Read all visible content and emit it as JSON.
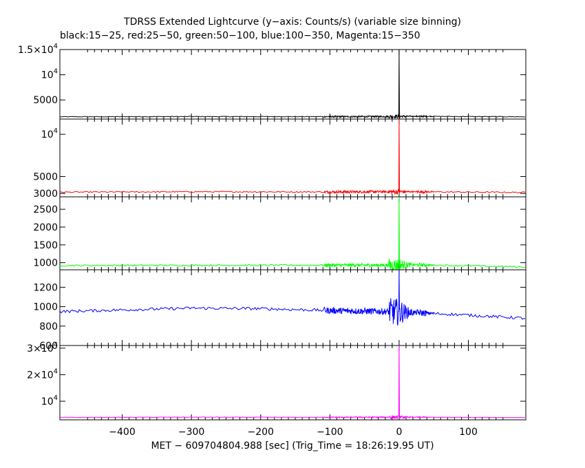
{
  "chart_data": {
    "type": "line",
    "title": "TDRSS Extended Lightcurve (y−axis: Counts/s) (variable size binning)",
    "subtitle": "black:15−25, red:25−50, green:50−100, blue:100−350, Magenta:15−350",
    "xlabel": "MET − 609704804.988 [sec] (Trig_Time = 18:26:19.95 UT)",
    "xlim": [
      -490,
      183
    ],
    "x_ticks": [
      -400,
      -300,
      -200,
      -100,
      0,
      100
    ],
    "x_tick_labels": [
      "−400",
      "−300",
      "−200",
      "−100",
      "0",
      "100"
    ],
    "panels": [
      {
        "name": "black:15−25",
        "color": "#000000",
        "ylim": [
          1200,
          15000
        ],
        "y_ticks": [
          5000,
          10000,
          15000
        ],
        "y_tick_labels": [
          {
            "base": "5000",
            "exp": ""
          },
          {
            "base": "10",
            "exp": "4"
          },
          {
            "base": "1.5×10",
            "exp": "4"
          }
        ],
        "baseline": [
          [
            -490,
            1650
          ],
          [
            -300,
            1700
          ],
          [
            -100,
            1680
          ],
          [
            -20,
            1700
          ],
          [
            20,
            1750
          ],
          [
            183,
            1650
          ]
        ],
        "noise": 70,
        "burst_noise": 350,
        "peak": 15000
      },
      {
        "name": "red:25−50",
        "color": "#ff0000",
        "ylim": [
          2600,
          11800
        ],
        "y_ticks": [
          3000,
          5000,
          10000
        ],
        "y_tick_labels": [
          {
            "base": "3000",
            "exp": ""
          },
          {
            "base": "5000",
            "exp": ""
          },
          {
            "base": "10",
            "exp": "4"
          }
        ],
        "baseline": [
          [
            -490,
            3150
          ],
          [
            -300,
            3200
          ],
          [
            -100,
            3180
          ],
          [
            -20,
            3200
          ],
          [
            20,
            3200
          ],
          [
            183,
            3120
          ]
        ],
        "noise": 70,
        "burst_noise": 300,
        "peak": 11800
      },
      {
        "name": "green:50−100",
        "color": "#00ff00",
        "ylim": [
          800,
          2850
        ],
        "y_ticks": [
          1000,
          1500,
          2000,
          2500
        ],
        "y_tick_labels": [
          {
            "base": "1000",
            "exp": ""
          },
          {
            "base": "1500",
            "exp": ""
          },
          {
            "base": "2000",
            "exp": ""
          },
          {
            "base": "2500",
            "exp": ""
          }
        ],
        "baseline": [
          [
            -490,
            920
          ],
          [
            -300,
            925
          ],
          [
            -100,
            930
          ],
          [
            -20,
            930
          ],
          [
            20,
            940
          ],
          [
            183,
            880
          ]
        ],
        "noise": 22,
        "burst_noise": 180,
        "peak": 2850
      },
      {
        "name": "blue:100−350",
        "color": "#0000ff",
        "ylim": [
          600,
          1380
        ],
        "y_ticks": [
          600,
          800,
          1000,
          1200
        ],
        "y_tick_labels": [
          {
            "base": "600",
            "exp": ""
          },
          {
            "base": "800",
            "exp": ""
          },
          {
            "base": "1000",
            "exp": ""
          },
          {
            "base": "1200",
            "exp": ""
          }
        ],
        "baseline": [
          [
            -490,
            950
          ],
          [
            -300,
            985
          ],
          [
            -200,
            980
          ],
          [
            -100,
            960
          ],
          [
            -20,
            950
          ],
          [
            20,
            940
          ],
          [
            80,
            920
          ],
          [
            183,
            880
          ]
        ],
        "noise": 15,
        "burst_noise": 140,
        "peak": 1380
      },
      {
        "name": "Magenta:15−350",
        "color": "#ff00ff",
        "ylim": [
          3000,
          31000
        ],
        "y_ticks": [
          10000,
          20000,
          30000
        ],
        "y_tick_labels": [
          {
            "base": "10",
            "exp": "4"
          },
          {
            "base": "2×10",
            "exp": "4"
          },
          {
            "base": "3×10",
            "exp": "4"
          }
        ],
        "baseline": [
          [
            -490,
            3900
          ],
          [
            -300,
            4000
          ],
          [
            -100,
            3950
          ],
          [
            -20,
            4000
          ],
          [
            20,
            4000
          ],
          [
            183,
            3850
          ]
        ],
        "noise": 90,
        "burst_noise": 600,
        "peak": 31000
      }
    ],
    "grid": false,
    "legend": "none"
  }
}
